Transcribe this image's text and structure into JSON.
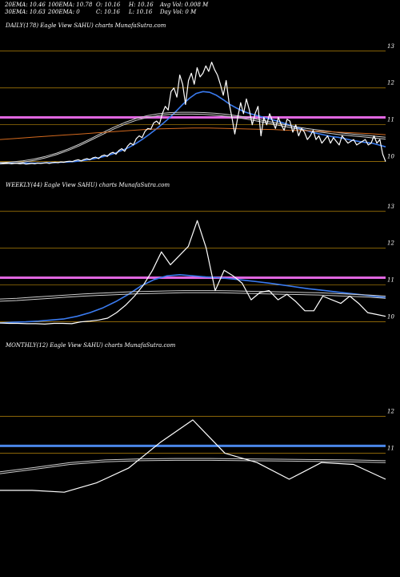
{
  "header": {
    "row1": [
      "20EMA: 10.46",
      "100EMA: 10.78",
      "O: 10.16",
      "H: 10.16",
      "Avg Vol: 0.008 M"
    ],
    "row2": [
      "30EMA: 10.63",
      "200EMA: 0",
      "C: 10.16",
      "L: 10.16",
      "Day Vol: 0  M"
    ]
  },
  "colors": {
    "background": "#000000",
    "grid": "#b8860b",
    "price": "#ffffff",
    "ema_fast": "#3a7bf0",
    "ema_slow": "#cccccc",
    "ema_long": "#d2691e",
    "level": "#e066e0",
    "level_monthly": "#4a86e8"
  },
  "chart_data": [
    {
      "type": "line",
      "title": "DAILY(178) Eagle   View  SAHU) charts MunafaSutra.com",
      "y_ticks": [
        "13",
        "12",
        "11",
        "10"
      ],
      "ylim": [
        9.6,
        13.3
      ],
      "level": 11.2,
      "series": [
        {
          "key": "price",
          "color": "#ffffff",
          "width": 1.2,
          "values": [
            9.97,
            9.96,
            9.96,
            9.95,
            9.94,
            9.95,
            9.95,
            9.94,
            9.95,
            9.93,
            9.94,
            9.95,
            9.94,
            9.96,
            9.95,
            9.96,
            9.97,
            9.95,
            9.97,
            9.98,
            9.97,
            9.99,
            9.98,
            10.0,
            10.01,
            10.0,
            10.03,
            10.05,
            10.02,
            10.06,
            10.08,
            10.05,
            10.1,
            10.12,
            10.08,
            10.15,
            10.18,
            10.14,
            10.22,
            10.25,
            10.2,
            10.3,
            10.35,
            10.28,
            10.42,
            10.5,
            10.45,
            10.62,
            10.7,
            10.65,
            10.82,
            10.9,
            10.88,
            11.05,
            11.1,
            11.02,
            11.3,
            11.5,
            11.4,
            11.9,
            12.0,
            11.75,
            12.35,
            12.1,
            11.55,
            12.2,
            12.4,
            12.1,
            12.55,
            12.3,
            12.4,
            12.6,
            12.45,
            12.7,
            12.5,
            12.35,
            12.1,
            11.8,
            12.2,
            11.6,
            11.2,
            10.75,
            11.2,
            11.6,
            11.3,
            11.7,
            11.4,
            11.0,
            11.3,
            11.5,
            10.7,
            11.2,
            11.0,
            11.3,
            11.1,
            10.9,
            11.2,
            11.0,
            10.85,
            11.15,
            11.1,
            10.8,
            11.0,
            10.7,
            10.9,
            10.8,
            10.6,
            10.7,
            10.85,
            10.6,
            10.7,
            10.5,
            10.6,
            10.7,
            10.5,
            10.65,
            10.55,
            10.45,
            10.7,
            10.6,
            10.5,
            10.55,
            10.6,
            10.45,
            10.5,
            10.55,
            10.6,
            10.45,
            10.5,
            10.7,
            10.5,
            10.6,
            10.2,
            10.0
          ]
        },
        {
          "key": "ema_fast",
          "color": "#3a7bf0",
          "width": 1.6,
          "values": [
            9.96,
            9.96,
            9.96,
            9.96,
            9.96,
            9.96,
            9.96,
            9.97,
            9.97,
            9.98,
            9.99,
            10.0,
            10.02,
            10.05,
            10.08,
            10.12,
            10.17,
            10.23,
            10.3,
            10.38,
            10.48,
            10.6,
            10.73,
            10.87,
            11.02,
            11.18,
            11.36,
            11.55,
            11.72,
            11.85,
            11.9,
            11.88,
            11.8,
            11.68,
            11.55,
            11.45,
            11.36,
            11.3,
            11.25,
            11.2,
            11.15,
            11.1,
            11.04,
            10.98,
            10.92,
            10.86,
            10.8,
            10.76,
            10.72,
            10.68,
            10.66,
            10.62,
            10.58,
            10.55,
            10.52,
            10.5,
            10.45,
            10.4
          ]
        },
        {
          "key": "ema_slow",
          "color": "#cccccc",
          "width": 1,
          "values": [
            9.97,
            9.99,
            10.02,
            10.07,
            10.14,
            10.23,
            10.34,
            10.47,
            10.62,
            10.78,
            10.93,
            11.06,
            11.17,
            11.25,
            11.3,
            11.33,
            11.34,
            11.34,
            11.33,
            11.31,
            11.28,
            11.24,
            11.19,
            11.13,
            11.07,
            11.01,
            10.95,
            10.9,
            10.86,
            10.82,
            10.78,
            10.75,
            10.72,
            10.69,
            10.66
          ]
        },
        {
          "key": "ema_slow2",
          "color": "#cccccc",
          "width": 1,
          "values": [
            9.93,
            9.95,
            9.98,
            10.03,
            10.1,
            10.19,
            10.3,
            10.43,
            10.58,
            10.73,
            10.88,
            11.01,
            11.12,
            11.2,
            11.25,
            11.28,
            11.29,
            11.29,
            11.28,
            11.26,
            11.23,
            11.19,
            11.14,
            11.08,
            11.02,
            10.96,
            10.9,
            10.85,
            10.81,
            10.77,
            10.73,
            10.7,
            10.67,
            10.64,
            10.61
          ]
        },
        {
          "key": "ema_long",
          "color": "#d2691e",
          "width": 1,
          "values": [
            10.6,
            10.63,
            10.66,
            10.69,
            10.72,
            10.75,
            10.78,
            10.81,
            10.84,
            10.87,
            10.89,
            10.9,
            10.91,
            10.91,
            10.9,
            10.89,
            10.88,
            10.87,
            10.85,
            10.84,
            10.82,
            10.8,
            10.78,
            10.76,
            10.73
          ]
        }
      ]
    },
    {
      "type": "line",
      "title": "WEEKLY(44) Eagle   View  SAHU) charts MunafaSutra.com",
      "y_ticks": [
        "13",
        "12",
        "11",
        "10"
      ],
      "ylim": [
        9.6,
        13.3
      ],
      "level": 11.2,
      "series": [
        {
          "key": "price",
          "color": "#ffffff",
          "width": 1.2,
          "values": [
            9.97,
            9.96,
            9.96,
            9.95,
            9.95,
            9.94,
            9.96,
            9.96,
            9.95,
            10.0,
            10.02,
            10.05,
            10.1,
            10.25,
            10.45,
            10.7,
            11.0,
            11.4,
            11.9,
            11.55,
            11.8,
            12.05,
            12.75,
            12.0,
            10.85,
            11.4,
            11.25,
            11.05,
            10.6,
            10.8,
            10.85,
            10.6,
            10.75,
            10.55,
            10.3,
            10.3,
            10.7,
            10.6,
            10.5,
            10.7,
            10.5,
            10.25,
            10.2,
            10.15
          ]
        },
        {
          "key": "ema_fast",
          "color": "#3a7bf0",
          "width": 1.6,
          "values": [
            9.97,
            9.99,
            10.0,
            10.02,
            10.05,
            10.08,
            10.15,
            10.25,
            10.38,
            10.55,
            10.75,
            10.98,
            11.15,
            11.25,
            11.28,
            11.25,
            11.22,
            11.2,
            11.17,
            11.13,
            11.09,
            11.05,
            11.0,
            10.95,
            10.9,
            10.86,
            10.82,
            10.78,
            10.74,
            10.7,
            10.66
          ]
        },
        {
          "key": "ema_slow",
          "color": "#cccccc",
          "width": 1,
          "values": [
            10.62,
            10.64,
            10.67,
            10.7,
            10.73,
            10.76,
            10.78,
            10.8,
            10.82,
            10.83,
            10.84,
            10.85,
            10.85,
            10.85,
            10.84,
            10.83,
            10.82,
            10.81,
            10.8,
            10.79,
            10.77,
            10.75,
            10.73,
            10.7
          ]
        },
        {
          "key": "ema_slow2",
          "color": "#cccccc",
          "width": 1,
          "values": [
            10.56,
            10.58,
            10.61,
            10.64,
            10.67,
            10.7,
            10.72,
            10.74,
            10.76,
            10.77,
            10.78,
            10.79,
            10.79,
            10.79,
            10.78,
            10.77,
            10.76,
            10.75,
            10.74,
            10.73,
            10.71,
            10.69,
            10.67,
            10.64
          ]
        }
      ]
    },
    {
      "type": "line",
      "title": "MONTHLY(12) Eagle   View  SAHU) charts MunafaSutra.com",
      "y_ticks": [
        "12",
        "11"
      ],
      "ylim": [
        9.5,
        13.5
      ],
      "level": 11.2,
      "series": [
        {
          "key": "price",
          "color": "#ffffff",
          "width": 1.2,
          "values": [
            10.0,
            10.0,
            9.95,
            10.2,
            10.6,
            11.3,
            11.9,
            11.0,
            10.75,
            10.3,
            10.75,
            10.7,
            10.3
          ]
        },
        {
          "key": "ema_slow",
          "color": "#cccccc",
          "width": 1,
          "values": [
            10.5,
            10.62,
            10.75,
            10.82,
            10.85,
            10.86,
            10.86,
            10.85,
            10.84,
            10.83,
            10.82,
            10.8
          ]
        },
        {
          "key": "ema_slow2",
          "color": "#cccccc",
          "width": 1,
          "values": [
            10.45,
            10.57,
            10.7,
            10.77,
            10.8,
            10.81,
            10.81,
            10.8,
            10.79,
            10.78,
            10.77,
            10.75
          ]
        }
      ]
    }
  ]
}
